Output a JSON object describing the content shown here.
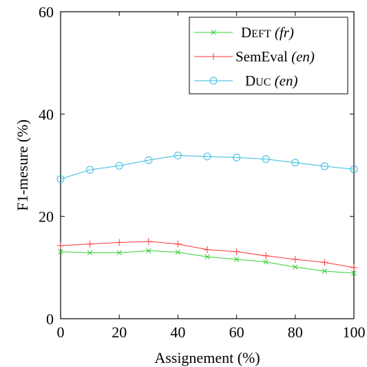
{
  "chart_data": {
    "type": "line",
    "xlabel": "Assignement (%)",
    "ylabel": "F1-mesure (%)",
    "xlim": [
      0,
      100
    ],
    "ylim": [
      0,
      60
    ],
    "xticks": [
      0,
      20,
      40,
      60,
      80,
      100
    ],
    "yticks": [
      0,
      20,
      40,
      60
    ],
    "grid": false,
    "legend_position": "top-right",
    "x": [
      0,
      10,
      20,
      30,
      40,
      50,
      60,
      70,
      80,
      90,
      100
    ],
    "series": [
      {
        "name_sc": "DEft",
        "name_cap": "D",
        "name_small": "EFT",
        "name_suffix": "(fr)",
        "marker": "x",
        "color": "#33cc33",
        "values": [
          13.1,
          12.9,
          12.9,
          13.3,
          13.0,
          12.1,
          11.6,
          11.1,
          10.1,
          9.3,
          8.9
        ]
      },
      {
        "name_plain": "SemEval",
        "name_suffix": "(en)",
        "marker": "plus",
        "color": "#ff3333",
        "values": [
          14.3,
          14.6,
          14.9,
          15.1,
          14.6,
          13.5,
          13.1,
          12.3,
          11.6,
          11.0,
          10.0
        ]
      },
      {
        "name_sc": "DUC",
        "name_cap": "D",
        "name_small": "UC",
        "name_suffix": "(en)",
        "marker": "circle",
        "color": "#33bbdd",
        "values": [
          27.3,
          29.1,
          29.9,
          31.0,
          31.9,
          31.7,
          31.5,
          31.2,
          30.5,
          29.8,
          29.2
        ]
      }
    ]
  }
}
